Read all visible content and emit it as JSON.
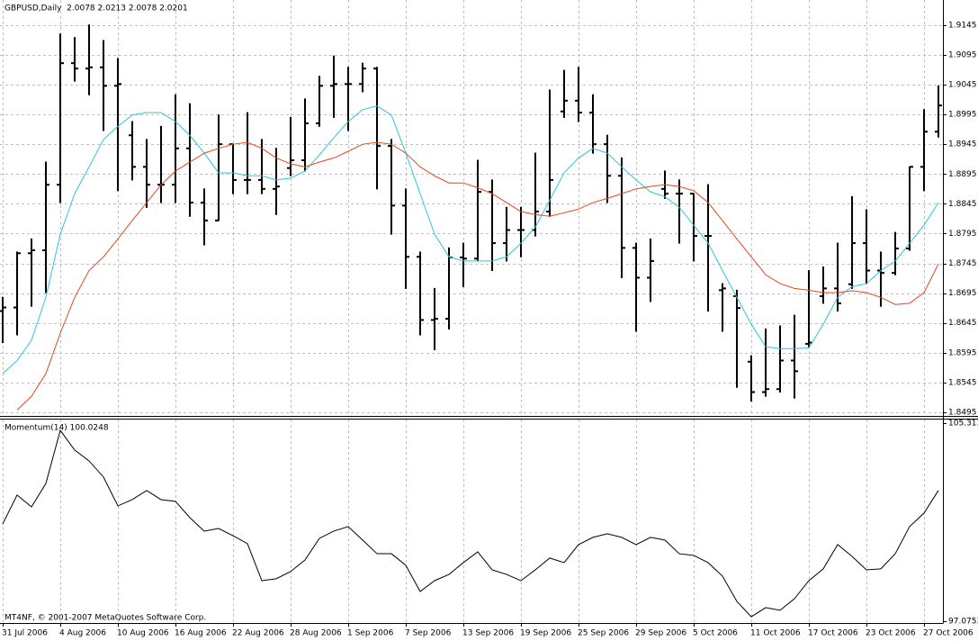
{
  "chart_data": [
    {
      "type": "ohlc",
      "title": "GBPUSD,Daily  2.0078 2.0213 2.0078 2.0201",
      "categories": [
        "31 Jul 2006",
        null,
        null,
        null,
        "4 Aug 2006",
        null,
        null,
        null,
        "10 Aug 2006",
        null,
        null,
        null,
        "16 Aug 2006",
        null,
        null,
        null,
        "22 Aug 2006",
        null,
        null,
        null,
        "28 Aug 2006",
        null,
        null,
        null,
        "1 Sep 2006",
        null,
        null,
        null,
        "7 Sep 2006",
        null,
        null,
        null,
        "13 Sep 2006",
        null,
        null,
        null,
        "19 Sep 2006",
        null,
        null,
        null,
        "25 Sep 2006",
        null,
        null,
        null,
        "29 Sep 2006",
        null,
        null,
        null,
        "5 Oct 2006",
        null,
        null,
        null,
        "11 Oct 2006",
        null,
        null,
        null,
        "17 Oct 2006",
        null,
        null,
        null,
        "23 Oct 2006",
        null,
        null,
        null,
        "27 Oct 2006",
        null
      ],
      "open": [
        1.8665,
        1.8671,
        1.8762,
        1.8767,
        1.8877,
        1.9081,
        1.9072,
        1.9074,
        1.9043,
        1.896,
        1.8907,
        1.8877,
        1.8877,
        1.8938,
        1.8847,
        1.8817,
        1.8945,
        1.8885,
        1.8885,
        1.887,
        1.8905,
        1.8918,
        1.898,
        1.9043,
        1.9046,
        1.9046,
        1.9072,
        1.8942,
        1.8842,
        1.8756,
        1.865,
        1.8652,
        1.8755,
        1.8753,
        1.8865,
        1.8779,
        1.8801,
        1.8801,
        1.8832,
        1.9,
        1.9018,
        1.8998,
        1.8945,
        1.8892,
        1.8771,
        1.8721,
        1.887,
        1.8862,
        1.8862,
        1.8791,
        1.87,
        1.869,
        1.858,
        1.8529,
        1.8534,
        1.8582,
        1.861,
        1.869,
        1.8703,
        1.871,
        1.8779,
        1.8733,
        1.8729,
        1.877,
        1.8907,
        1.8966
      ],
      "high": [
        1.8688,
        1.8764,
        1.8786,
        1.8915,
        1.913,
        1.9124,
        1.9145,
        1.9119,
        1.9089,
        1.8983,
        1.8953,
        1.8975,
        1.9028,
        1.9013,
        1.887,
        1.8994,
        1.8945,
        1.8998,
        1.8953,
        1.8938,
        1.899,
        1.9021,
        1.9059,
        1.9093,
        1.9074,
        1.9081,
        1.9074,
        1.8953,
        1.887,
        1.8764,
        1.8703,
        1.8771,
        1.8779,
        1.8918,
        1.8885,
        1.8839,
        1.8839,
        1.893,
        1.9036,
        1.9069,
        1.9074,
        1.9028,
        1.896,
        1.8922,
        1.8779,
        1.8786,
        1.89,
        1.8885,
        1.8862,
        1.8877,
        1.8711,
        1.87,
        1.859,
        1.8635,
        1.864,
        1.8658,
        1.8733,
        1.8739,
        1.8779,
        1.8857,
        1.8835,
        1.8764,
        1.8797,
        1.8907,
        1.9003,
        1.9043
      ],
      "low": [
        1.8612,
        1.8625,
        1.8673,
        1.8696,
        1.8847,
        1.9051,
        1.9028,
        1.8968,
        1.8867,
        1.8885,
        1.8839,
        1.8847,
        1.8847,
        1.8824,
        1.8776,
        1.8817,
        1.8862,
        1.8862,
        1.8862,
        1.8827,
        1.8892,
        1.89,
        1.8975,
        1.899,
        1.8968,
        1.9033,
        1.887,
        1.8794,
        1.8703,
        1.8625,
        1.86,
        1.8635,
        1.8706,
        1.8749,
        1.8733,
        1.8749,
        1.8756,
        1.8791,
        1.8824,
        1.899,
        1.8983,
        1.893,
        1.8847,
        1.8721,
        1.8631,
        1.8681,
        1.8854,
        1.8779,
        1.8749,
        1.8665,
        1.8631,
        1.8537,
        1.8514,
        1.8522,
        1.8529,
        1.8519,
        1.8605,
        1.8678,
        1.8665,
        1.8703,
        1.8711,
        1.8673,
        1.8726,
        1.8767,
        1.8867,
        1.8957
      ],
      "close": [
        1.8671,
        1.8762,
        1.8767,
        1.8877,
        1.9081,
        1.9072,
        1.9074,
        1.9043,
        1.9046,
        1.8907,
        1.8877,
        1.8877,
        1.8938,
        1.8847,
        1.8817,
        1.8945,
        1.8885,
        1.8885,
        1.887,
        1.8874,
        1.8918,
        1.898,
        1.9043,
        1.9046,
        1.9046,
        1.9072,
        1.8942,
        1.8842,
        1.8756,
        1.865,
        1.8652,
        1.8755,
        1.8753,
        1.8865,
        1.8779,
        1.8801,
        1.8801,
        1.8832,
        1.8885,
        1.9018,
        1.8998,
        1.8945,
        1.8892,
        1.8771,
        1.8721,
        1.8749,
        1.8862,
        1.8862,
        1.8791,
        1.8791,
        1.8703,
        1.867,
        1.8529,
        1.8534,
        1.8582,
        1.8564,
        1.8612,
        1.8703,
        1.8678,
        1.8779,
        1.8733,
        1.8729,
        1.877,
        1.8907,
        1.8966,
        1.901
      ],
      "color": "#000000",
      "lines": [
        {
          "color": "#2ec4de",
          "values": [
            1.856,
            1.8582,
            1.8616,
            1.8688,
            1.8794,
            1.8862,
            1.8907,
            1.8953,
            1.8975,
            1.8994,
            1.8998,
            1.8998,
            1.8983,
            1.896,
            1.893,
            1.8897,
            1.8897,
            1.8892,
            1.8892,
            1.8885,
            1.8888,
            1.89,
            1.8927,
            1.8956,
            1.8983,
            1.9003,
            1.9009,
            1.8994,
            1.893,
            1.8862,
            1.8794,
            1.8756,
            1.8749,
            1.8749,
            1.8749,
            1.8756,
            1.8779,
            1.8806,
            1.8851,
            1.8897,
            1.8922,
            1.8938,
            1.893,
            1.8907,
            1.8885,
            1.8865,
            1.8857,
            1.8839,
            1.8809,
            1.8779,
            1.8733,
            1.8688,
            1.8643,
            1.8605,
            1.8602,
            1.8602,
            1.8603,
            1.8643,
            1.8688,
            1.8706,
            1.8711,
            1.8733,
            1.8749,
            1.8779,
            1.8809,
            1.8847
          ]
        },
        {
          "color": "#e4471f",
          "values": [
            null,
            1.8499,
            1.8522,
            1.856,
            1.8628,
            1.8688,
            1.8733,
            1.8756,
            1.8786,
            1.8817,
            1.8847,
            1.8877,
            1.89,
            1.8915,
            1.893,
            1.8938,
            1.8945,
            1.8948,
            1.8938,
            1.8922,
            1.8912,
            1.8907,
            1.8915,
            1.8922,
            1.8933,
            1.8945,
            1.8948,
            1.8945,
            1.893,
            1.8907,
            1.8892,
            1.888,
            1.888,
            1.8872,
            1.8862,
            1.8847,
            1.8832,
            1.8827,
            1.8824,
            1.883,
            1.8836,
            1.8847,
            1.8854,
            1.8862,
            1.887,
            1.8874,
            1.8877,
            1.8874,
            1.8867,
            1.8847,
            1.8817,
            1.8786,
            1.8756,
            1.8726,
            1.8711,
            1.8703,
            1.87,
            1.8696,
            1.8696,
            1.8699,
            1.8696,
            1.8688,
            1.8676,
            1.8678,
            1.8696,
            1.8744
          ]
        }
      ],
      "ylim": [
        1.8489,
        1.9187
      ],
      "yticks": [
        1.9145,
        1.9095,
        1.9045,
        1.8995,
        1.8945,
        1.8895,
        1.8845,
        1.8795,
        1.8745,
        1.8695,
        1.8645,
        1.8595,
        1.8545,
        1.8495
      ],
      "grid": true
    },
    {
      "type": "line",
      "title": "Momentum(14) 100.0248",
      "values": [
        101.12,
        102.32,
        101.83,
        102.8,
        105.01,
        104.19,
        103.74,
        103.07,
        101.87,
        102.13,
        102.51,
        102.13,
        102.06,
        101.38,
        100.82,
        100.93,
        100.63,
        100.3,
        98.76,
        98.84,
        99.14,
        99.62,
        100.52,
        100.82,
        101.01,
        100.45,
        99.88,
        99.88,
        99.4,
        98.31,
        98.76,
        99.02,
        99.51,
        99.96,
        99.21,
        99.02,
        98.76,
        99.21,
        99.7,
        99.51,
        100.26,
        100.56,
        100.71,
        100.56,
        100.26,
        100.56,
        100.45,
        99.88,
        99.81,
        99.51,
        98.95,
        97.9,
        97.26,
        97.64,
        97.53,
        98.01,
        98.76,
        99.25,
        100.26,
        99.77,
        99.21,
        99.25,
        99.88,
        101.01,
        101.57,
        102.51
      ],
      "color": "#000000",
      "ylim": [
        97.0,
        105.46
      ],
      "yticks": [
        105.313,
        97.0753
      ],
      "grid": "x"
    }
  ],
  "footer": "MT4NF, © 2001-2007 MetaQuotes Software Corp."
}
